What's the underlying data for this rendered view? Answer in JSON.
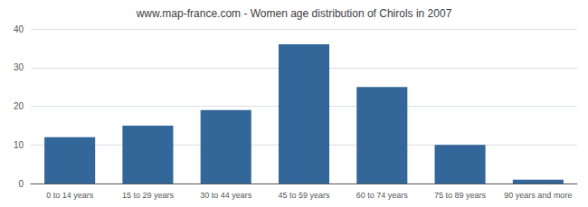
{
  "chart_data": {
    "type": "bar",
    "title": "www.map-france.com - Women age distribution of Chirols in 2007",
    "categories": [
      "0 to 14 years",
      "15 to 29 years",
      "30 to 44 years",
      "45 to 59 years",
      "60 to 74 years",
      "75 to 89 years",
      "90 years and more"
    ],
    "values": [
      12,
      15,
      19,
      36,
      25,
      10,
      1
    ],
    "color": "#336699",
    "ylim": [
      0,
      40
    ],
    "yticks": [
      0,
      10,
      20,
      30,
      40
    ],
    "grid": true
  }
}
